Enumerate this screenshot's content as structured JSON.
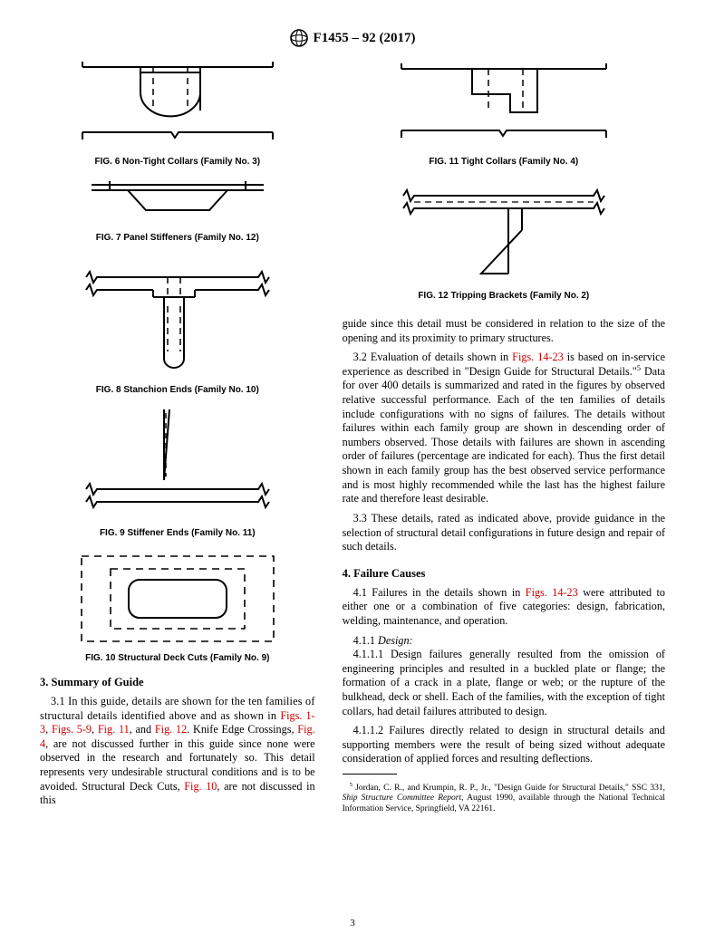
{
  "header": "F1455 – 92 (2017)",
  "figs": {
    "f6": "FIG. 6  Non-Tight Collars (Family No. 3)",
    "f7": "FIG. 7  Panel Stiffeners (Family No. 12)",
    "f8": "FIG. 8  Stanchion Ends (Family No. 10)",
    "f9": "FIG. 9  Stiffener Ends (Family No. 11)",
    "f10": "FIG. 10  Structural Deck Cuts (Family No. 9)",
    "f11": "FIG. 11  Tight Collars (Family No. 4)",
    "f12": "FIG. 12  Tripping Brackets (Family No. 2)"
  },
  "sect3": {
    "head": "3.  Summary of Guide",
    "p31a": "3.1 In this guide, details are shown for the ten families of structural details identified above and as shown in ",
    "p31_link1": "Figs. 1-3",
    "p31_link2": "Figs. 5-9",
    "p31_link3": "Fig. 11",
    "p31_and": ", and ",
    "p31_link4": "Fig. 12",
    "p31b": ". Knife Edge Crossings, ",
    "p31_link5": "Fig. 4",
    "p31c": ", are not discussed further in this guide since none were observed in the research and fortunately so. This detail represents very undesirable structural conditions and is to be avoided. Structural Deck Cuts, ",
    "p31_link6": "Fig. 10",
    "p31d": ", are not discussed in this",
    "cont": "guide since this detail must be considered in relation to the size of the opening and its proximity to primary structures.",
    "p32a": "3.2 Evaluation of details shown in ",
    "p32_link": "Figs. 14-23",
    "p32b": " is based on in-service experience as described in \"Design Guide for Structural Details.\"",
    "p32c": " Data for over 400 details is summarized and rated in the figures by observed relative successful performance. Each of the ten families of details include configurations with no signs of failures. The details without failures within each family group are shown in descending order of numbers observed. Those details with failures are shown in ascending order of failures (percentage are indicated for each). Thus the first detail shown in each family group has the best observed service performance and is most highly recommended while the last has the highest failure rate and therefore least desirable.",
    "p33": "3.3 These details, rated as indicated above, provide guidance in the selection of structural detail configurations in future design and repair of such details."
  },
  "sect4": {
    "head": "4.  Failure Causes",
    "p41a": "4.1 Failures in the details shown in ",
    "p41_link": "Figs. 14-23",
    "p41b": " were attributed to either one or a combination of five categories: design, fabrication, welding, maintenance, and operation.",
    "p411": "4.1.1 ",
    "p411ital": "Design:",
    "p4111": "4.1.1.1 Design failures generally resulted from the omission of engineering principles and resulted in a buckled plate or flange; the formation of a crack in a plate, flange or web; or the rupture of the bulkhead, deck or shell. Each of the families, with the exception of tight collars, had detail failures attributed to design.",
    "p4112": "4.1.1.2 Failures directly related to design in structural details and supporting members were the result of being sized without adequate consideration of applied forces and resulting deflections."
  },
  "footnote_n": "5",
  "footnote": " Jordan, C. R., and Krumpin, R. P., Jr., \"Design Guide for Structural Details,\" SSC 331, Ship Structure Committee Report, August 1990, available through the National Technical Information Service, Springfield, VA 22161.",
  "footnote_ital": "Ship Structure Committee Report",
  "pagenum": "3"
}
